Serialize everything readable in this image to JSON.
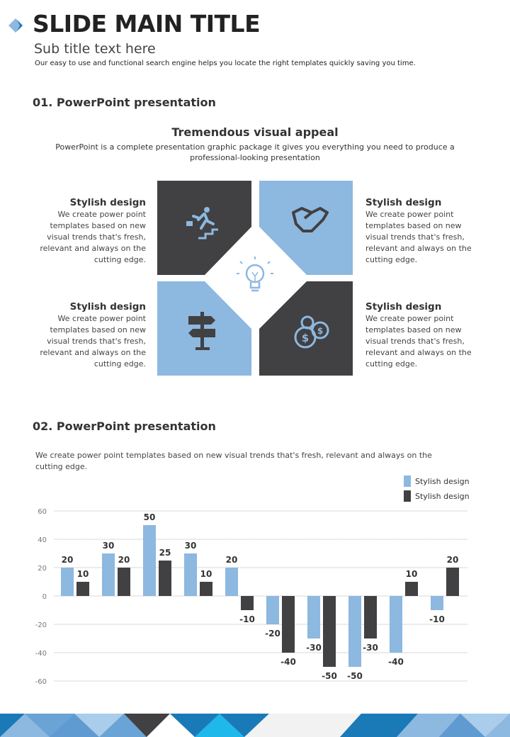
{
  "header": {
    "title": "SLIDE MAIN TITLE",
    "subtitle": "Sub title text here",
    "description": "Our easy to use and functional search engine  helps you locate the right templates quickly saving you time."
  },
  "section1": {
    "heading": "01. PowerPoint presentation",
    "title": "Tremendous visual appeal",
    "text": "PowerPoint is a complete presentation graphic package it gives you everything you need to produce a professional-looking presentation",
    "features": [
      {
        "title": "Stylish design",
        "text": "We create power point templates based on new visual trends that's fresh, relevant and always on the cutting edge.",
        "icon": "running-up-stairs-icon"
      },
      {
        "title": "Stylish design",
        "text": "We create power point templates based on new visual trends that's fresh, relevant and always on the cutting edge.",
        "icon": "handshake-icon"
      },
      {
        "title": "Stylish design",
        "text": "We create power point templates based on new visual trends that's fresh, relevant and always on the cutting edge.",
        "icon": "signpost-icon"
      },
      {
        "title": "Stylish design",
        "text": "We create power point templates based on new visual trends that's fresh, relevant and always on the cutting edge.",
        "icon": "coins-icon"
      }
    ],
    "center_icon": "lightbulb-icon"
  },
  "section2": {
    "heading": "02. PowerPoint presentation",
    "text": "We create power point templates based on new visual trends that's fresh, relevant and always on the cutting edge."
  },
  "colors": {
    "light": "#8db8e0",
    "dark": "#414042",
    "accent": "#1a7ab8"
  },
  "chart_data": {
    "type": "bar",
    "categories": [
      "",
      "",
      "",
      "",
      "",
      "",
      "",
      "",
      "",
      ""
    ],
    "series": [
      {
        "name": "Stylish design",
        "color": "#8db8e0",
        "values": [
          20,
          30,
          50,
          30,
          20,
          -20,
          -30,
          -50,
          -40,
          -10
        ]
      },
      {
        "name": "Stylish design",
        "color": "#414042",
        "values": [
          10,
          20,
          25,
          10,
          -10,
          -40,
          -50,
          -30,
          10,
          20
        ]
      }
    ],
    "ylim": [
      -60,
      60
    ],
    "yticks": [
      60,
      40,
      20,
      0,
      -20,
      -40,
      -60
    ],
    "grid": true,
    "legend": "top-right",
    "data_labels": true
  }
}
